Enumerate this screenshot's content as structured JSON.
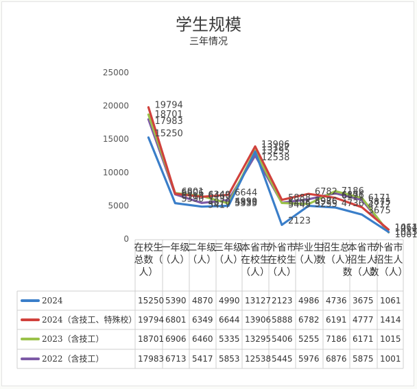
{
  "chart_data": {
    "type": "line",
    "title": "学生规模",
    "subtitle": "三年情况",
    "categories": [
      [
        "在校生",
        "总数（",
        "人）"
      ],
      [
        "一年级",
        "（人）"
      ],
      [
        "二年级",
        "（人）"
      ],
      [
        "三年级",
        "（人）"
      ],
      [
        "本省市",
        "在校生",
        "（人）"
      ],
      [
        "外省市",
        "在校生",
        "（人）"
      ],
      [
        "毕业生",
        "（人）"
      ],
      [
        "招生总",
        "数（人）"
      ],
      [
        "本省市",
        "招生人",
        "数（人）"
      ],
      [
        "外省市",
        "招生人",
        "数（人）"
      ]
    ],
    "yticks": [
      "0",
      "5000",
      "10000",
      "15000",
      "20000",
      "25000"
    ],
    "ylim": [
      0,
      25000
    ],
    "grid": false,
    "legend": "table-bottom",
    "series": [
      {
        "name": "2024",
        "color": "#3a7ec9",
        "values": [
          15250,
          5390,
          4870,
          4990,
          13127,
          2123,
          4986,
          4736,
          3675,
          1061
        ]
      },
      {
        "name": "2024（含技工、特殊校）",
        "color": "#d0413c",
        "values": [
          19794,
          6801,
          6349,
          6644,
          13906,
          5888,
          6782,
          6191,
          4777,
          1414
        ]
      },
      {
        "name": "2023（含技工）",
        "color": "#9bc24b",
        "values": [
          18701,
          6906,
          6460,
          5335,
          13295,
          5406,
          5255,
          7186,
          6171,
          1015
        ]
      },
      {
        "name": "2022（含技工）",
        "color": "#7d5aa6",
        "values": [
          17983,
          6713,
          5417,
          5853,
          12538,
          5445,
          5976,
          6876,
          5875,
          1001
        ]
      }
    ]
  }
}
